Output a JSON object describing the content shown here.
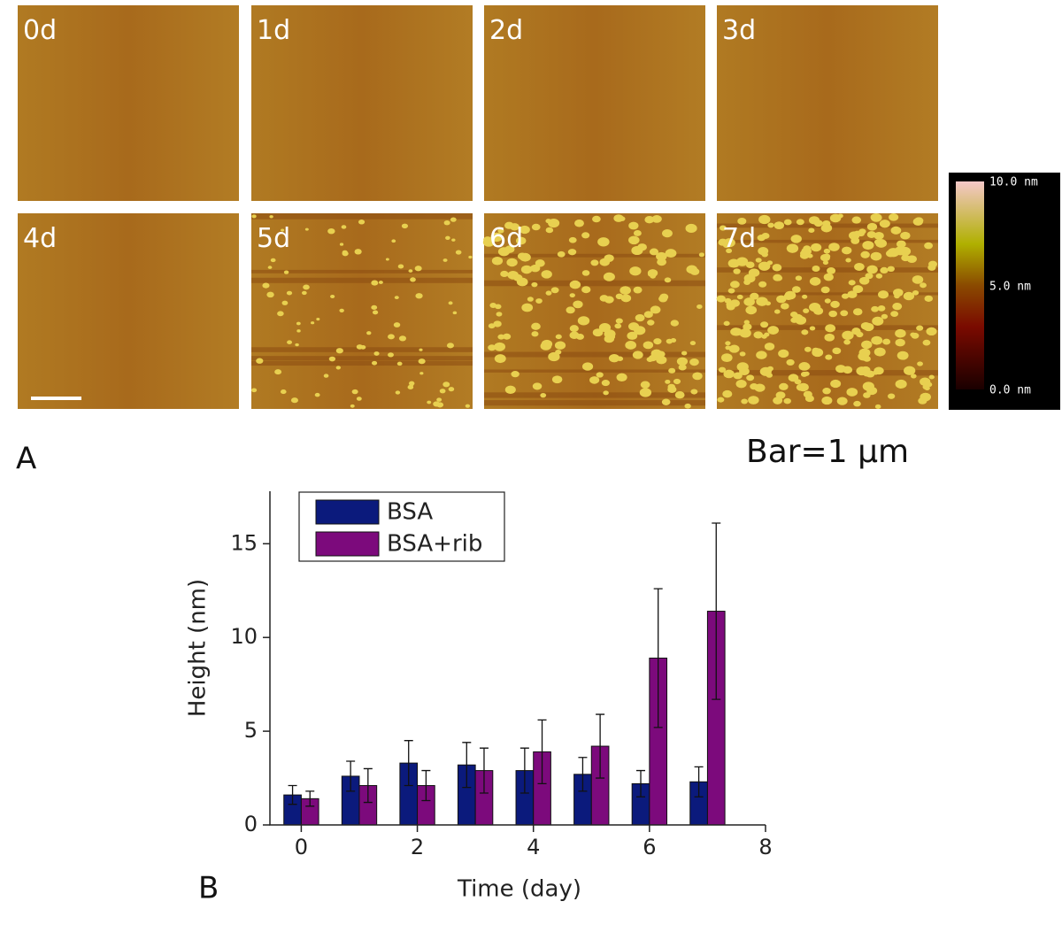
{
  "panel_a": {
    "label": "A",
    "images": [
      "0d",
      "1d",
      "2d",
      "3d",
      "4d",
      "5d",
      "6d",
      "7d"
    ],
    "colorbar": [
      "10.0 nm",
      "5.0 nm",
      "0.0 nm"
    ],
    "scale_bar": "Bar=1 µm"
  },
  "panel_b_label": "B",
  "chart_data": {
    "type": "bar",
    "x_label": "Time (day)",
    "y_label": "Height (nm)",
    "x": [
      0,
      1,
      2,
      3,
      4,
      5,
      6,
      7
    ],
    "series": [
      {
        "name": "BSA",
        "color": "#0b1a7c",
        "values": [
          1.6,
          2.6,
          3.3,
          3.2,
          2.9,
          2.7,
          2.2,
          2.3
        ],
        "errors": [
          0.5,
          0.8,
          1.2,
          1.2,
          1.2,
          0.9,
          0.7,
          0.8
        ]
      },
      {
        "name": "BSA+rib",
        "color": "#7c0a7c",
        "values": [
          1.4,
          2.1,
          2.1,
          2.9,
          3.9,
          4.2,
          8.9,
          11.4
        ],
        "errors": [
          0.4,
          0.9,
          0.8,
          1.2,
          1.7,
          1.7,
          3.7,
          4.7
        ]
      }
    ],
    "xlim": [
      -0.54,
      8
    ],
    "xticks": [
      0,
      2,
      4,
      6,
      8
    ],
    "ylim": [
      0,
      17.8
    ],
    "yticks": [
      0,
      5,
      10,
      15
    ],
    "legend": "upper left"
  }
}
